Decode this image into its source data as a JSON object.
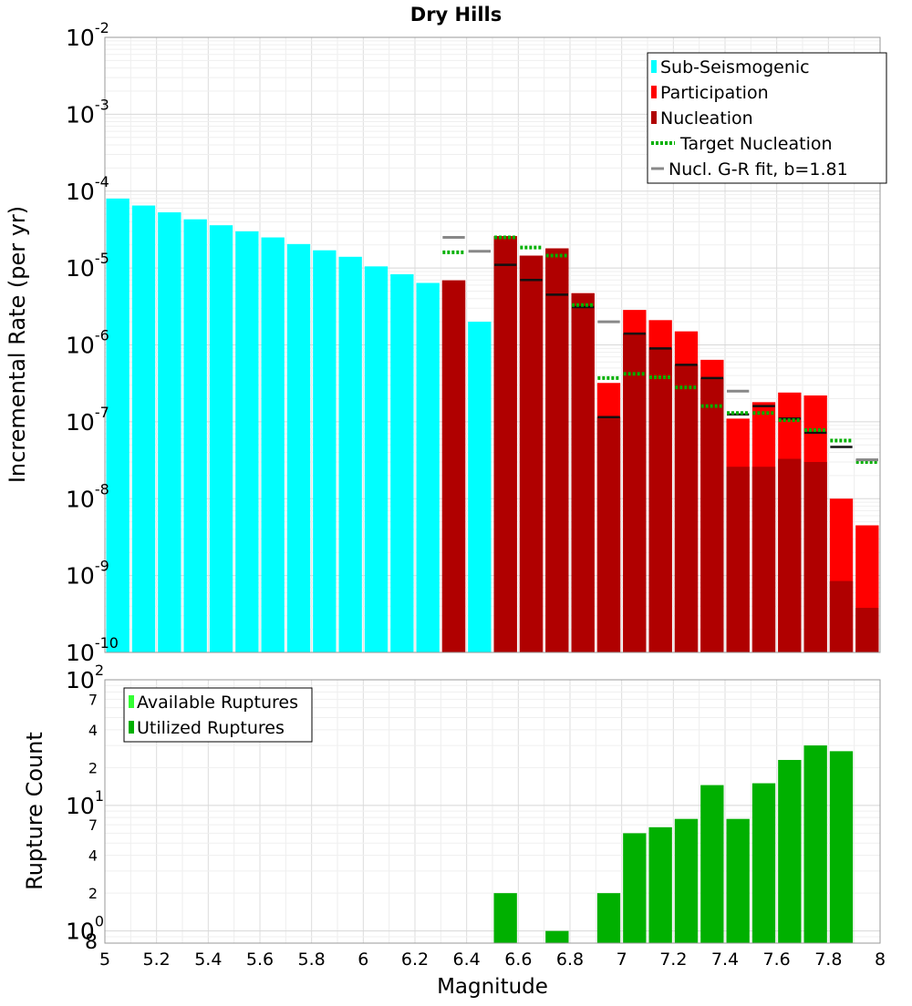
{
  "chart_data": [
    {
      "type": "bar",
      "title": "Dry Hills",
      "xlabel": "Magnitude",
      "ylabel": "Incremental Rate (per yr)",
      "xlim": [
        5,
        8
      ],
      "ylim": [
        1e-10,
        0.01
      ],
      "yscale": "log",
      "bin_width": 0.1,
      "y_ticks": [
        {
          "base": "10",
          "exp": "-10",
          "value": 1e-10
        },
        {
          "base": "10",
          "exp": "-9",
          "value": 1e-09
        },
        {
          "base": "10",
          "exp": "-8",
          "value": 1e-08
        },
        {
          "base": "10",
          "exp": "-7",
          "value": 1e-07
        },
        {
          "base": "10",
          "exp": "-6",
          "value": 1e-06
        },
        {
          "base": "10",
          "exp": "-5",
          "value": 1e-05
        },
        {
          "base": "10",
          "exp": "-4",
          "value": 0.0001
        },
        {
          "base": "10",
          "exp": "-3",
          "value": 0.001
        },
        {
          "base": "10",
          "exp": "-2",
          "value": 0.01
        }
      ],
      "legend_position": "top-right",
      "legend": [
        {
          "label": "Sub-Seismogenic",
          "color": "#00ffff",
          "style": "bar"
        },
        {
          "label": "Participation",
          "color": "#ff0000",
          "style": "bar"
        },
        {
          "label": "Nucleation",
          "color": "#b00000",
          "style": "bar"
        },
        {
          "label": "Target Nucleation",
          "color": "#00b000",
          "style": "dotted"
        },
        {
          "label": "Nucl. G-R fit, b=1.81",
          "color": "#888888",
          "style": "solid"
        }
      ],
      "series": [
        {
          "name": "Sub-Seismogenic",
          "color": "#00ffff",
          "x": [
            5.05,
            5.15,
            5.25,
            5.35,
            5.45,
            5.55,
            5.65,
            5.75,
            5.85,
            5.95,
            6.05,
            6.15,
            6.25,
            6.45
          ],
          "values": [
            8e-05,
            6.5e-05,
            5.3e-05,
            4.3e-05,
            3.6e-05,
            3e-05,
            2.5e-05,
            2.05e-05,
            1.7e-05,
            1.4e-05,
            1.05e-05,
            8.3e-06,
            6.4e-06,
            2e-06
          ]
        },
        {
          "name": "Participation",
          "color": "#ff0000",
          "x": [
            6.35,
            6.55,
            6.65,
            6.75,
            6.85,
            6.95,
            7.05,
            7.15,
            7.25,
            7.35,
            7.45,
            7.55,
            7.65,
            7.75,
            7.85,
            7.95
          ],
          "values": [
            6.9e-06,
            2.6e-05,
            1.45e-05,
            1.8e-05,
            4.7e-06,
            3.2e-07,
            2.85e-06,
            2.1e-06,
            1.5e-06,
            6.4e-07,
            1.1e-07,
            1.8e-07,
            2.4e-07,
            2.2e-07,
            1e-08,
            4.5e-09
          ]
        },
        {
          "name": "Nucleation",
          "color": "#b00000",
          "x": [
            6.35,
            6.55,
            6.65,
            6.75,
            6.85,
            6.95,
            7.05,
            7.15,
            7.25,
            7.35,
            7.45,
            7.55,
            7.65,
            7.75,
            7.85,
            7.95
          ],
          "values": [
            6.9e-06,
            2.6e-05,
            1.45e-05,
            1.8e-05,
            4.7e-06,
            1.15e-07,
            1.4e-06,
            9e-07,
            5.5e-07,
            3.7e-07,
            2.6e-08,
            2.6e-08,
            3.3e-08,
            3e-08,
            8.5e-10,
            3.8e-10
          ]
        },
        {
          "name": "Nucleation markers",
          "color": "#111111",
          "x": [
            6.55,
            6.65,
            6.75,
            6.85,
            6.95,
            7.05,
            7.15,
            7.25,
            7.35,
            7.45,
            7.55,
            7.65,
            7.75,
            7.85,
            7.95
          ],
          "values": [
            1.1e-05,
            7e-06,
            4.5e-06,
            3.1e-06,
            1.15e-07,
            1.4e-06,
            9e-07,
            5.5e-07,
            3.7e-07,
            1.25e-07,
            1.6e-07,
            1.1e-07,
            7.2e-08,
            4.7e-08,
            3.2e-08
          ]
        },
        {
          "name": "Target Nucleation",
          "color": "#00b000",
          "x": [
            6.35,
            6.55,
            6.65,
            6.75,
            6.85,
            6.95,
            7.05,
            7.15,
            7.25,
            7.35,
            7.45,
            7.55,
            7.65,
            7.75,
            7.85,
            7.95
          ],
          "values": [
            1.6e-05,
            2.5e-05,
            1.85e-05,
            1.45e-05,
            3.3e-06,
            3.7e-07,
            4.2e-07,
            3.8e-07,
            2.8e-07,
            1.6e-07,
            1.3e-07,
            1.3e-07,
            1.05e-07,
            7.8e-08,
            5.7e-08,
            3e-08
          ]
        },
        {
          "name": "Nucl. G-R fit, b=1.81",
          "color": "#888888",
          "x": [
            6.35,
            6.45,
            6.95,
            7.45,
            7.95
          ],
          "values": [
            2.5e-05,
            1.65e-05,
            2e-06,
            2.5e-07,
            3.2e-08
          ]
        }
      ]
    },
    {
      "type": "bar",
      "xlabel": "Magnitude",
      "ylabel": "Rupture Count",
      "xlim": [
        5,
        8
      ],
      "ylim": [
        0.8,
        100
      ],
      "yscale": "log",
      "bin_width": 0.1,
      "x_ticks": [
        "5",
        "5.2",
        "5.4",
        "5.6",
        "5.8",
        "6",
        "6.2",
        "6.4",
        "6.6",
        "6.8",
        "7",
        "7.2",
        "7.4",
        "7.6",
        "7.8",
        "8"
      ],
      "x_tick_values": [
        5,
        5.2,
        5.4,
        5.6,
        5.8,
        6,
        6.2,
        6.4,
        6.6,
        6.8,
        7,
        7.2,
        7.4,
        7.6,
        7.8,
        8
      ],
      "y_major_ticks": [
        {
          "base": "10",
          "exp": "0",
          "value": 1
        },
        {
          "base": "10",
          "exp": "1",
          "value": 10
        },
        {
          "base": "10",
          "exp": "2",
          "value": 100
        }
      ],
      "y_minor_ticks": [
        {
          "label": "8",
          "value": 0.8
        },
        {
          "label": "2",
          "value": 2
        },
        {
          "label": "4",
          "value": 4
        },
        {
          "label": "7",
          "value": 7
        },
        {
          "label": "2",
          "value": 20
        },
        {
          "label": "4",
          "value": 40
        },
        {
          "label": "7",
          "value": 70
        }
      ],
      "legend_position": "top-left",
      "legend": [
        {
          "label": "Available Ruptures",
          "color": "#33ff33",
          "style": "bar"
        },
        {
          "label": "Utilized Ruptures",
          "color": "#00b000",
          "style": "bar"
        }
      ],
      "series": [
        {
          "name": "Utilized Ruptures",
          "color": "#00b000",
          "x": [
            6.55,
            6.75,
            6.95,
            7.05,
            7.15,
            7.25,
            7.35,
            7.45,
            7.55,
            7.65,
            7.75,
            7.85
          ],
          "values": [
            2,
            1,
            2,
            6,
            6.7,
            7.8,
            14.5,
            7.8,
            15,
            23,
            30,
            27
          ]
        }
      ]
    }
  ]
}
